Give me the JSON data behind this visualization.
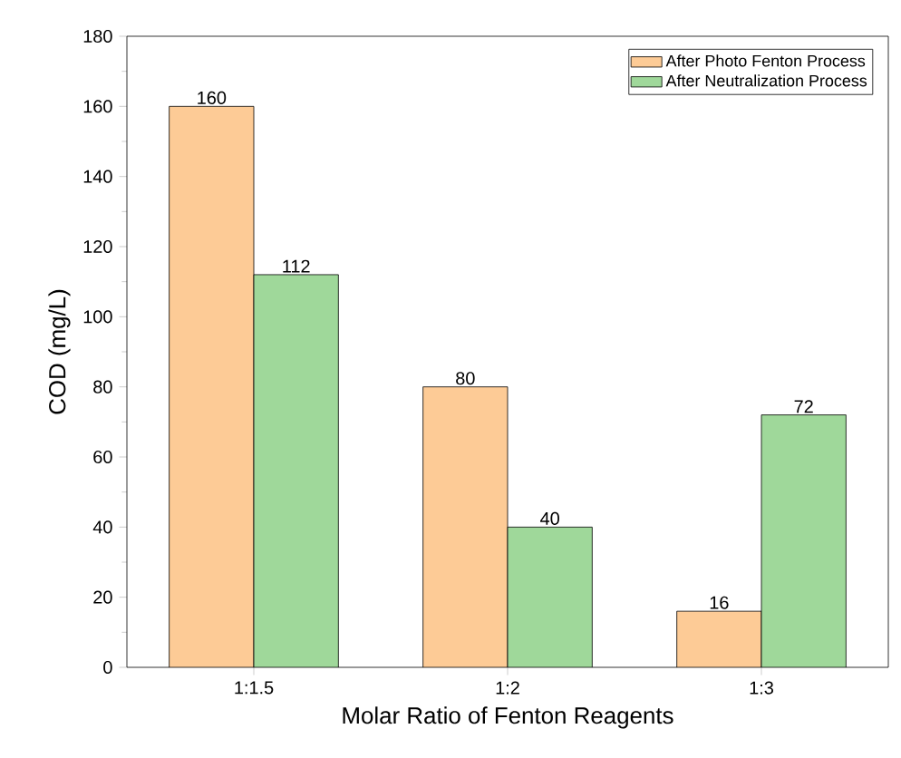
{
  "chart_data": {
    "type": "bar",
    "xlabel": "Molar Ratio of Fenton Reagents",
    "ylabel": "COD (mg/L)",
    "categories": [
      "1:1.5",
      "1:2",
      "1:3"
    ],
    "series": [
      {
        "name": "After Photo Fenton Process",
        "color": "#fdcb96",
        "values": [
          160,
          80,
          16
        ]
      },
      {
        "name": "After Neutralization Process",
        "color": "#9fd89a",
        "values": [
          112,
          40,
          72
        ]
      }
    ],
    "ylim": [
      0,
      180
    ],
    "yticks": [
      0,
      20,
      40,
      60,
      80,
      100,
      120,
      140,
      160,
      180
    ],
    "data_labels": true,
    "legend": "top right",
    "grid": false
  }
}
